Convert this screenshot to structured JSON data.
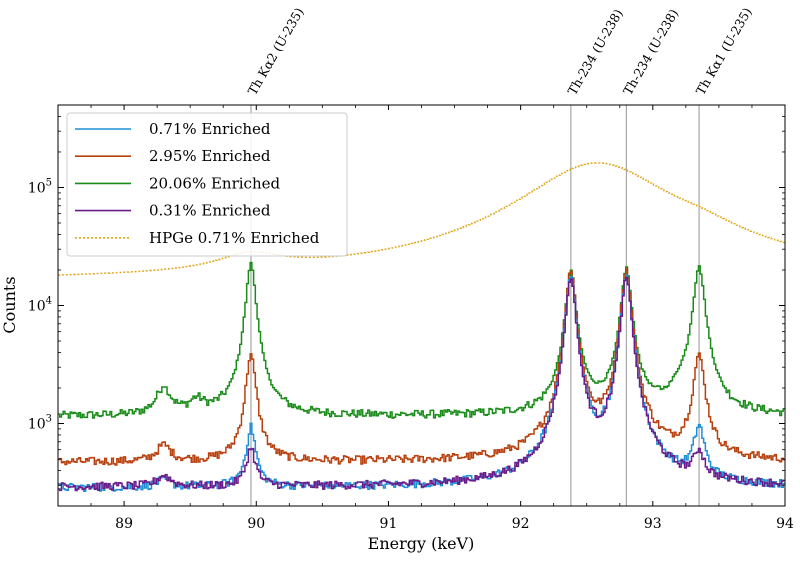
{
  "chart_data": {
    "type": "line",
    "title": "",
    "xlabel": "Energy (keV)",
    "ylabel": "Counts",
    "xlim": [
      88.5,
      94.0
    ],
    "ylim": [
      200,
      500000
    ],
    "yscale": "log",
    "x_ticks": [
      89,
      90,
      91,
      92,
      93,
      94
    ],
    "x_tick_labels": [
      "89",
      "90",
      "91",
      "92",
      "93",
      "94"
    ],
    "y_ticks": [
      1000,
      10000,
      100000
    ],
    "y_tick_labels": [
      {
        "base": "10",
        "exp": "3"
      },
      {
        "base": "10",
        "exp": "4"
      },
      {
        "base": "10",
        "exp": "5"
      }
    ],
    "grid": false,
    "legend_position": "upper-left",
    "reference_lines": [
      {
        "x": 89.96,
        "label": "Th Kα2 (U-235)"
      },
      {
        "x": 92.38,
        "label": "Th-234 (U-238)"
      },
      {
        "x": 92.8,
        "label": "Th-234 (U-238)"
      },
      {
        "x": 93.35,
        "label": "Th Kα1 (U-235)"
      }
    ],
    "series": [
      {
        "name": "0.71% Enriched",
        "color": "#1f8fd6",
        "style": "solid",
        "baseline": 285,
        "peaks": [
          {
            "x": 89.3,
            "a": 45,
            "w": 0.06
          },
          {
            "x": 89.96,
            "a": 640,
            "w": 0.035
          },
          {
            "x": 92.38,
            "a": 17500,
            "w": 0.035
          },
          {
            "x": 92.8,
            "a": 17500,
            "w": 0.035
          },
          {
            "x": 93.35,
            "a": 600,
            "w": 0.04
          }
        ]
      },
      {
        "name": "2.95% Enriched",
        "color": "#b8400e",
        "style": "solid",
        "baseline": 470,
        "peaks": [
          {
            "x": 89.3,
            "a": 180,
            "w": 0.06
          },
          {
            "x": 89.96,
            "a": 3400,
            "w": 0.035
          },
          {
            "x": 92.38,
            "a": 19500,
            "w": 0.035
          },
          {
            "x": 92.8,
            "a": 19800,
            "w": 0.035
          },
          {
            "x": 93.35,
            "a": 3300,
            "w": 0.04
          }
        ]
      },
      {
        "name": "20.06% Enriched",
        "color": "#1a8c1a",
        "style": "solid",
        "baseline": 1150,
        "peaks": [
          {
            "x": 89.3,
            "a": 850,
            "w": 0.06
          },
          {
            "x": 89.55,
            "a": 350,
            "w": 0.06
          },
          {
            "x": 89.96,
            "a": 21500,
            "w": 0.035
          },
          {
            "x": 92.38,
            "a": 18500,
            "w": 0.035
          },
          {
            "x": 92.8,
            "a": 19500,
            "w": 0.035
          },
          {
            "x": 93.2,
            "a": 400,
            "w": 0.06
          },
          {
            "x": 93.35,
            "a": 20000,
            "w": 0.04
          }
        ]
      },
      {
        "name": "0.31% Enriched",
        "color": "#6a1a8a",
        "style": "solid",
        "baseline": 290,
        "peaks": [
          {
            "x": 89.3,
            "a": 70,
            "w": 0.06
          },
          {
            "x": 89.96,
            "a": 330,
            "w": 0.035
          },
          {
            "x": 92.38,
            "a": 16800,
            "w": 0.035
          },
          {
            "x": 92.8,
            "a": 17000,
            "w": 0.035
          },
          {
            "x": 93.35,
            "a": 240,
            "w": 0.04
          }
        ]
      },
      {
        "name": "HPGe 0.71% Enriched",
        "color": "#e0a81c",
        "style": "dotted",
        "baseline": 15500,
        "peaks": [
          {
            "x": 89.96,
            "a": 7500,
            "w": 0.28
          },
          {
            "x": 92.58,
            "a": 145000,
            "w": 0.52
          },
          {
            "x": 93.35,
            "a": 8000,
            "w": 0.3
          }
        ]
      }
    ]
  }
}
